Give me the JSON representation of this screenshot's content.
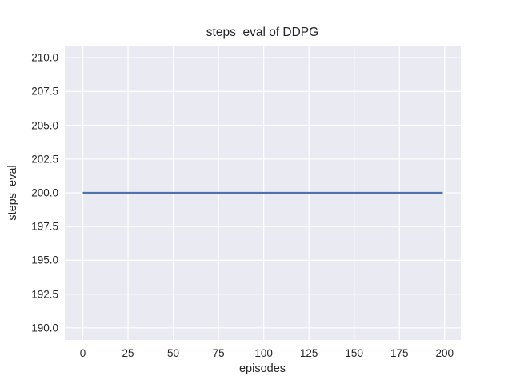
{
  "chart_data": {
    "type": "line",
    "title": "steps_eval of DDPG",
    "xlabel": "episodes",
    "ylabel": "steps_eval",
    "xlim": [
      -9.95,
      208.95
    ],
    "ylim": [
      189.1,
      210.9
    ],
    "xticks": [
      0,
      25,
      50,
      75,
      100,
      125,
      150,
      175,
      200
    ],
    "xtick_labels": [
      "0",
      "25",
      "50",
      "75",
      "100",
      "125",
      "150",
      "175",
      "200"
    ],
    "yticks": [
      190.0,
      192.5,
      195.0,
      197.5,
      200.0,
      202.5,
      205.0,
      207.5,
      210.0
    ],
    "ytick_labels": [
      "190.0",
      "192.5",
      "195.0",
      "197.5",
      "200.0",
      "202.5",
      "205.0",
      "207.5",
      "210.0"
    ],
    "grid": true,
    "legend": null,
    "series": [
      {
        "name": "steps_eval",
        "x": [
          0,
          199
        ],
        "y": [
          200,
          200
        ],
        "color": "#4c72b0",
        "line_width": 2.2
      }
    ],
    "colors": {
      "figure_bg": "#ffffff",
      "axes_bg": "#eaeaf2",
      "grid": "#ffffff",
      "text": "#262626"
    }
  }
}
